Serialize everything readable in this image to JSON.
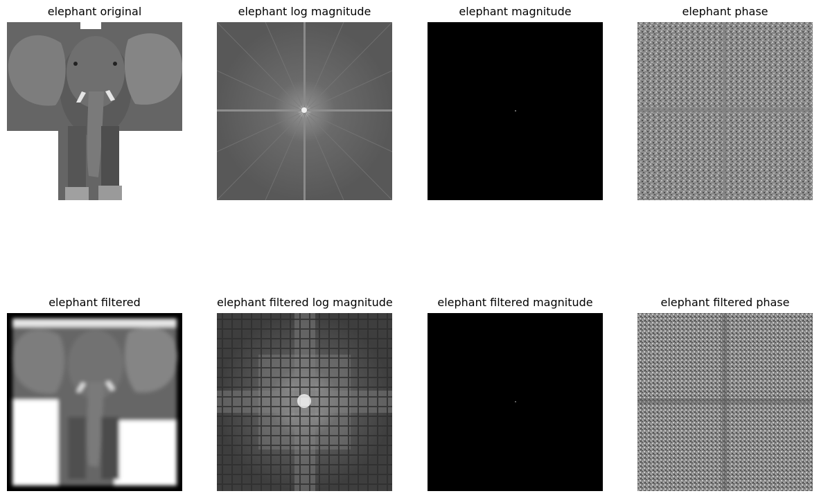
{
  "panels": [
    {
      "id": "p1",
      "title": "elephant original"
    },
    {
      "id": "p2",
      "title": "elephant log magnitude"
    },
    {
      "id": "p3",
      "title": "elephant magnitude"
    },
    {
      "id": "p4",
      "title": "elephant phase"
    },
    {
      "id": "p5",
      "title": "elephant filtered"
    },
    {
      "id": "p6",
      "title": "elephant filtered log magnitude"
    },
    {
      "id": "p7",
      "title": "elephant filtered magnitude"
    },
    {
      "id": "p8",
      "title": "elephant filtered phase"
    }
  ]
}
